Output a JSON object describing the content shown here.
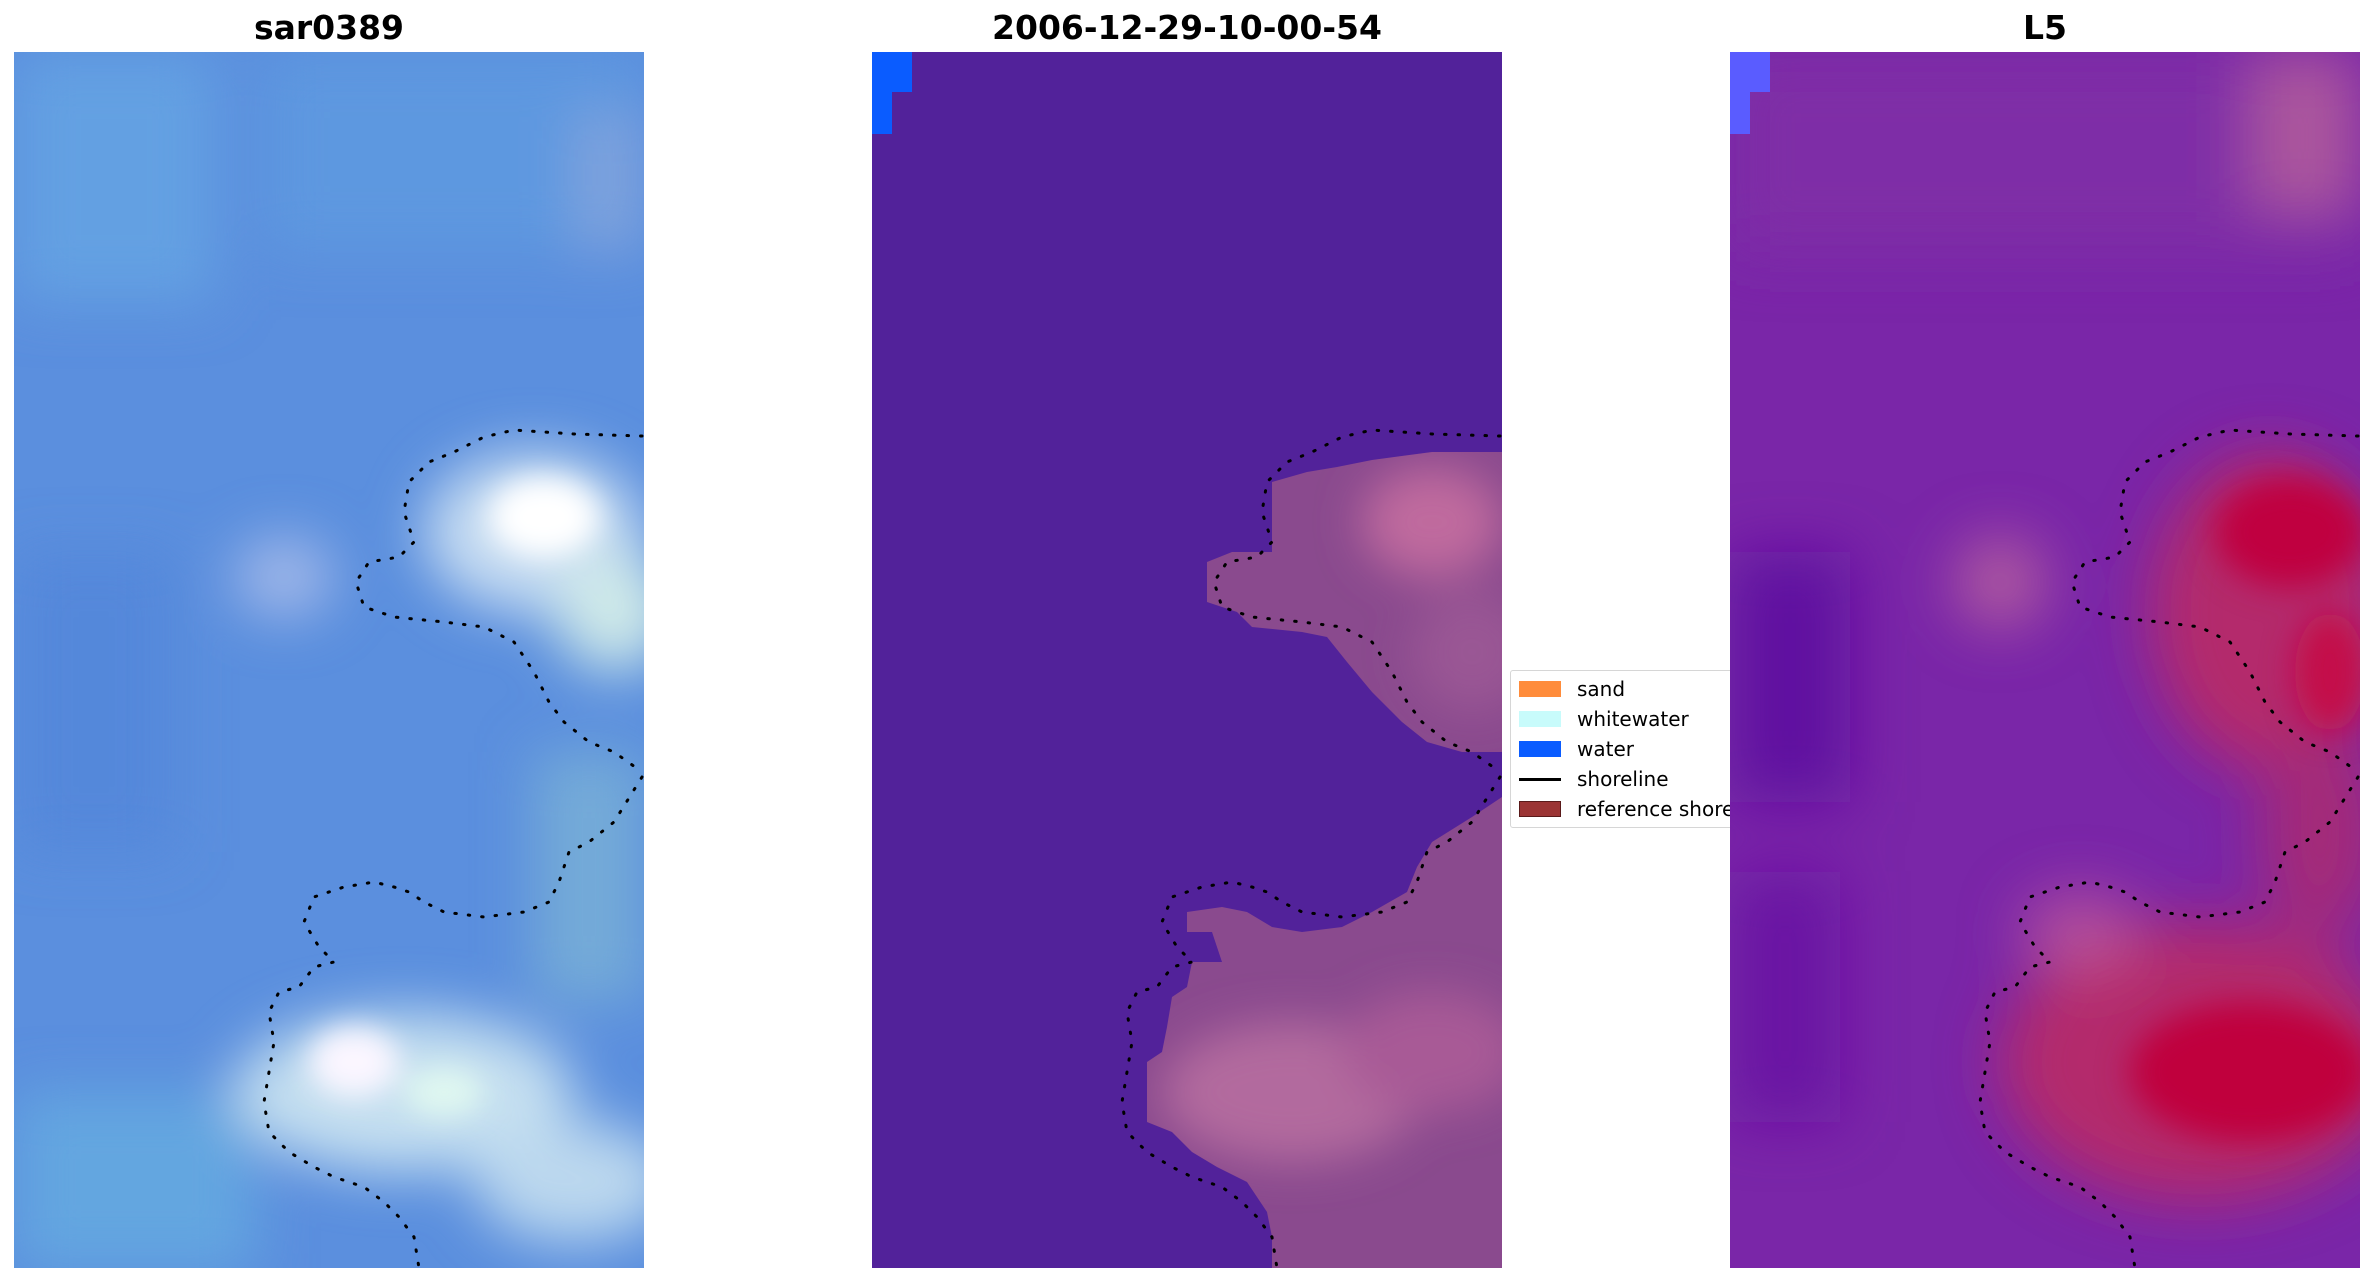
{
  "panels": [
    {
      "title": "sar0389",
      "base_color": "#5b8fde"
    },
    {
      "title": "2006-12-29-10-00-54",
      "base_color": "#52229a"
    },
    {
      "title": "L5",
      "base_color": "#7a26a8"
    }
  ],
  "legend": {
    "items": [
      {
        "label": "sand",
        "color": "#ff8c3b",
        "kind": "patch"
      },
      {
        "label": "whitewater",
        "color": "#c8fbfb",
        "kind": "patch"
      },
      {
        "label": "water",
        "color": "#0a5cff",
        "kind": "patch"
      },
      {
        "label": "shoreline",
        "color": "#000000",
        "kind": "line"
      },
      {
        "label": "reference shoreline",
        "color": "#9b3434",
        "kind": "patch"
      }
    ]
  }
}
